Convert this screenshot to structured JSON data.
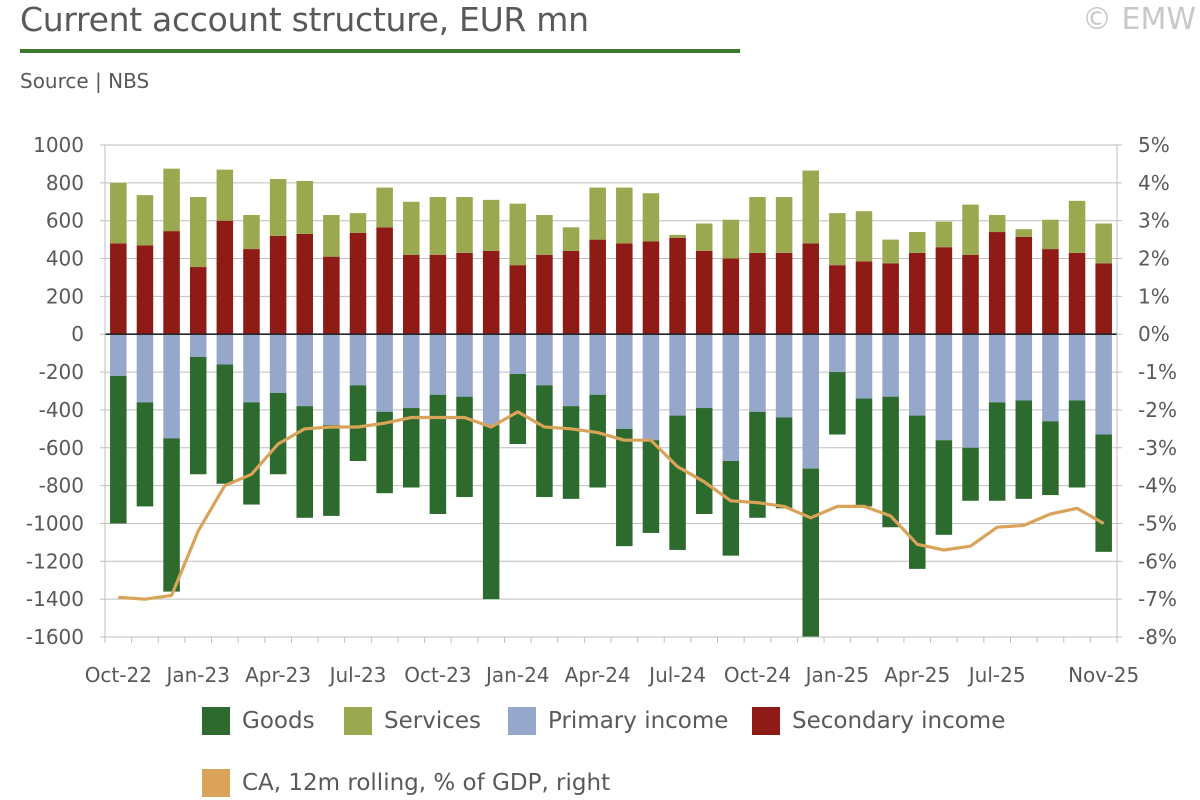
{
  "header": {
    "title": "Current account structure, EUR mn",
    "source": "Source | NBS",
    "watermark": "© EMW"
  },
  "colors": {
    "goods": "#2d6a2d",
    "services": "#9aa94f",
    "primary_income": "#95a8cc",
    "secondary_income": "#8e1b16",
    "ca_line": "#d9a35a",
    "grid": "#bfbfbf",
    "zero_line": "#262626"
  },
  "legend": {
    "goods": "Goods",
    "services": "Services",
    "primary_income": "Primary income",
    "secondary_income": "Secondary income",
    "ca_line": "CA, 12m rolling, % of GDP, right"
  },
  "chart_data": {
    "type": "bar",
    "stacked": true,
    "title": "Current account structure, EUR mn",
    "categories": [
      "Oct-22",
      "Nov-22",
      "Dec-22",
      "Jan-23",
      "Feb-23",
      "Mar-23",
      "Apr-23",
      "May-23",
      "Jun-23",
      "Jul-23",
      "Aug-23",
      "Sep-23",
      "Oct-23",
      "Nov-23",
      "Dec-23",
      "Jan-24",
      "Feb-24",
      "Mar-24",
      "Apr-24",
      "May-24",
      "Jun-24",
      "Jul-24",
      "Aug-24",
      "Sep-24",
      "Oct-24",
      "Nov-24",
      "Dec-24",
      "Jan-25",
      "Feb-25",
      "Mar-25",
      "Apr-25",
      "May-25",
      "Jun-25",
      "Jul-25",
      "Aug-25",
      "Sep-25",
      "Oct-25",
      "Nov-25"
    ],
    "x_tick_labels": [
      "Oct-22",
      "Jan-23",
      "Apr-23",
      "Jul-23",
      "Oct-23",
      "Jan-24",
      "Apr-24",
      "Jul-24",
      "Oct-24",
      "Jan-25",
      "Apr-25",
      "Jul-25",
      "Nov-25"
    ],
    "ylim": [
      -1600,
      1000
    ],
    "y_ticks": [
      1000,
      800,
      600,
      400,
      200,
      0,
      -200,
      -400,
      -600,
      -800,
      -1000,
      -1200,
      -1400,
      -1600
    ],
    "y2lim": [
      -8,
      5
    ],
    "y2_ticks": [
      "5%",
      "4%",
      "3%",
      "2%",
      "1%",
      "0%",
      "-1%",
      "-2%",
      "-3%",
      "-4%",
      "-5%",
      "-6%",
      "-7%",
      "-8%"
    ],
    "series": [
      {
        "name": "Secondary income",
        "values": [
          480,
          470,
          545,
          355,
          600,
          450,
          520,
          530,
          410,
          535,
          565,
          420,
          420,
          430,
          440,
          365,
          420,
          440,
          500,
          480,
          490,
          510,
          440,
          400,
          430,
          430,
          480,
          365,
          385,
          375,
          430,
          460,
          420,
          540,
          515,
          450,
          430,
          375
        ]
      },
      {
        "name": "Services",
        "values": [
          320,
          265,
          330,
          370,
          270,
          180,
          300,
          280,
          220,
          105,
          210,
          280,
          305,
          295,
          270,
          325,
          210,
          125,
          275,
          295,
          255,
          15,
          145,
          205,
          295,
          295,
          385,
          275,
          265,
          125,
          110,
          135,
          265,
          90,
          40,
          155,
          275,
          210
        ]
      },
      {
        "name": "Primary income",
        "values": [
          -220,
          -360,
          -550,
          -120,
          -160,
          -360,
          -310,
          -380,
          -480,
          -270,
          -410,
          -390,
          -320,
          -330,
          -480,
          -210,
          -270,
          -380,
          -320,
          -500,
          -560,
          -430,
          -390,
          -670,
          -410,
          -440,
          -710,
          -200,
          -340,
          -330,
          -430,
          -560,
          -600,
          -360,
          -350,
          -460,
          -350,
          -530
        ]
      },
      {
        "name": "Goods",
        "values": [
          -780,
          -550,
          -810,
          -620,
          -630,
          -540,
          -430,
          -590,
          -480,
          -400,
          -430,
          -420,
          -630,
          -530,
          -920,
          -370,
          -590,
          -490,
          -490,
          -620,
          -490,
          -710,
          -560,
          -500,
          -560,
          -480,
          -910,
          -330,
          -570,
          -690,
          -810,
          -500,
          -280,
          -520,
          -520,
          -390,
          -460,
          -620
        ]
      }
    ],
    "line_series": {
      "name": "CA, 12m rolling, % of GDP, right",
      "axis": "right",
      "values": [
        -6.95,
        -7.0,
        -6.9,
        -5.2,
        -4.0,
        -3.7,
        -2.9,
        -2.5,
        -2.45,
        -2.45,
        -2.35,
        -2.2,
        -2.2,
        -2.2,
        -2.45,
        -2.05,
        -2.45,
        -2.5,
        -2.6,
        -2.8,
        -2.8,
        -3.5,
        -3.9,
        -4.4,
        -4.45,
        -4.55,
        -4.85,
        -4.55,
        -4.55,
        -4.8,
        -5.55,
        -5.7,
        -5.6,
        -5.1,
        -5.05,
        -4.75,
        -4.6,
        -5.0
      ]
    }
  }
}
